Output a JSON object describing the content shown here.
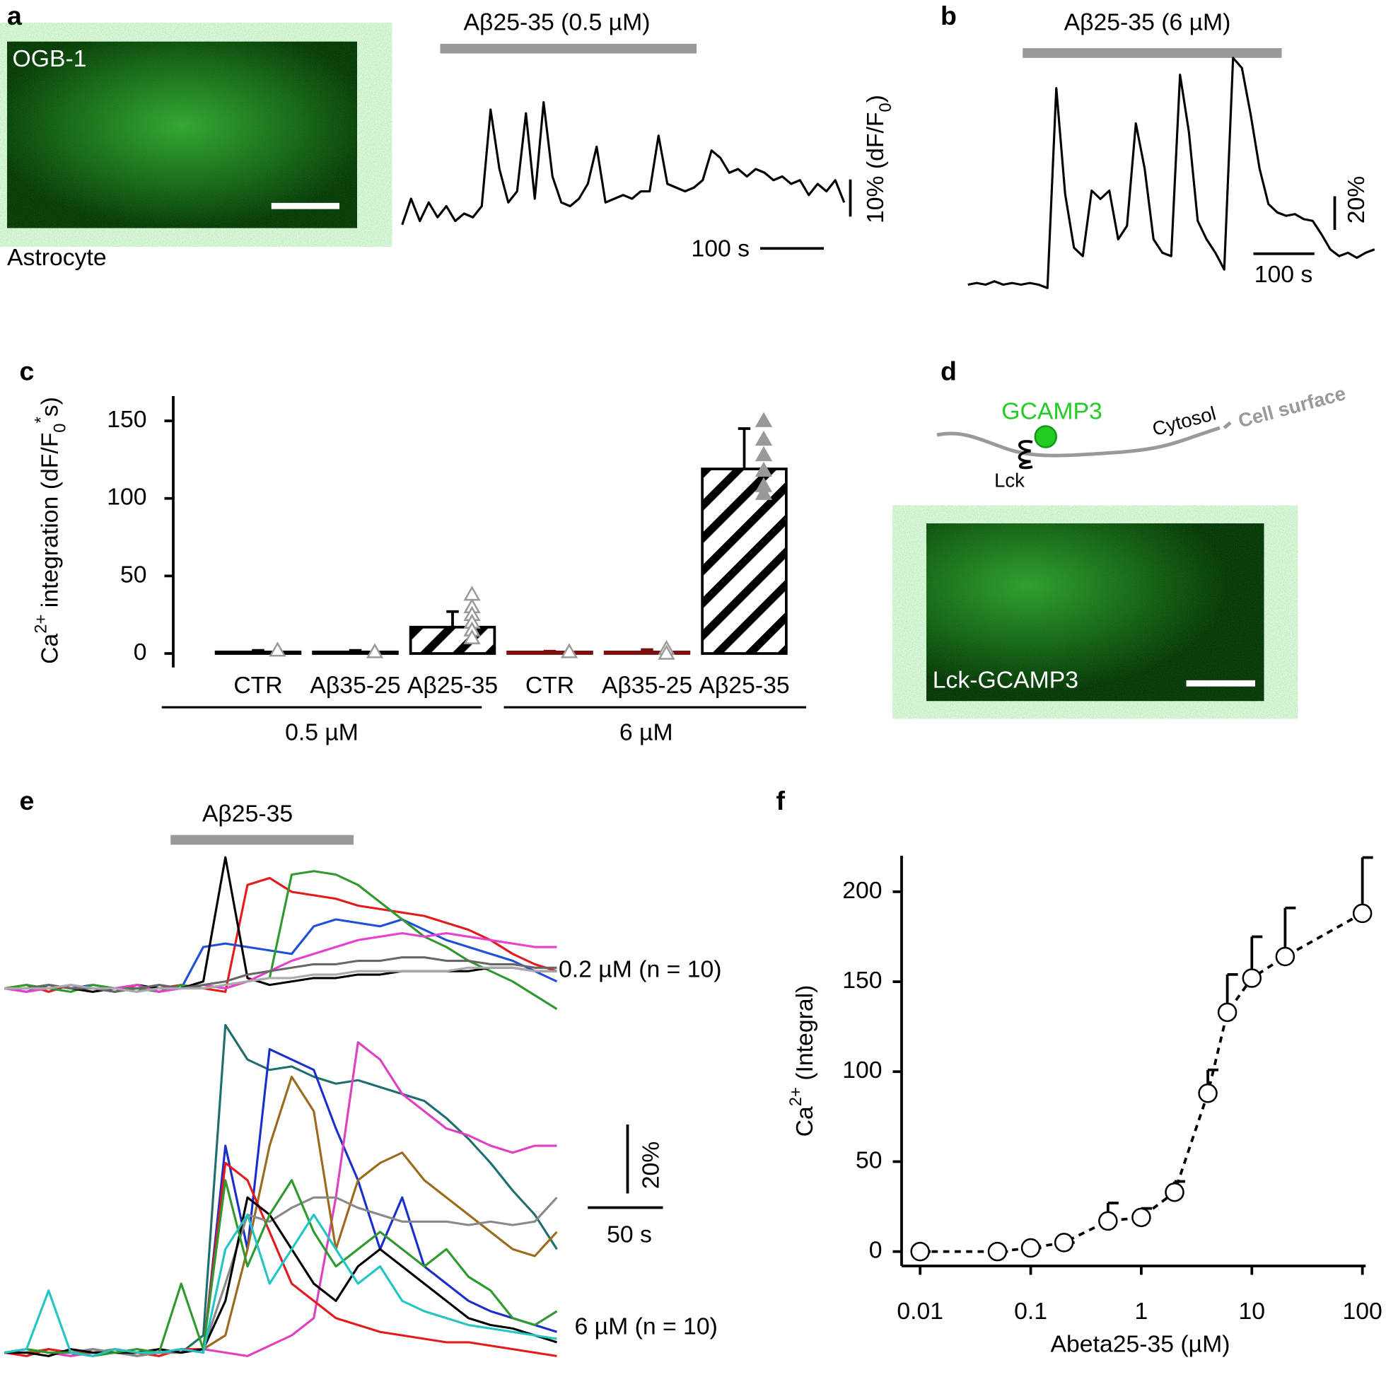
{
  "chart_data": [
    {
      "type": "line",
      "panel_label": "a",
      "image_label": "OGB-1",
      "caption": "Astrocyte",
      "bar_label": "Aβ25-35 (0.5 µM)",
      "scale_x_label": "100 s",
      "scale_y_label": [
        "10% (dF/F",
        "0",
        ")"
      ],
      "series": [
        {
          "color": "#000000",
          "values": [
            -1,
            6,
            0,
            5,
            1,
            4,
            0,
            2,
            1,
            4,
            30,
            14,
            5,
            8,
            29,
            6,
            32,
            12,
            5,
            4,
            6,
            10,
            20,
            5,
            6,
            7,
            6,
            8,
            8,
            23,
            10,
            9,
            8,
            9,
            11,
            19,
            17,
            13,
            14,
            12,
            14,
            13,
            11,
            12,
            10,
            11,
            7,
            10,
            8,
            11,
            5
          ]
        }
      ]
    },
    {
      "type": "line",
      "panel_label": "b",
      "bar_label": "Aβ25-35 (6 µM)",
      "scale_x_label": "100 s",
      "scale_y_label": "20%",
      "series": [
        {
          "color": "#000000",
          "values": [
            0,
            1,
            0,
            2,
            0,
            1,
            0,
            1,
            0,
            -2,
            117,
            54,
            22,
            17,
            56,
            51,
            56,
            27,
            35,
            96,
            69,
            27,
            19,
            17,
            125,
            91,
            38,
            27,
            19,
            9,
            135,
            129,
            101,
            69,
            48,
            43,
            41,
            42,
            39,
            38,
            30,
            21,
            17,
            19,
            16,
            19,
            21
          ]
        }
      ]
    },
    {
      "type": "bar",
      "panel_label": "c",
      "ylabel": [
        "Ca",
        "2+",
        " integration (dF/F",
        "0",
        "*",
        "s)"
      ],
      "categories": [
        "CTR",
        "Aβ35-25",
        "Aβ25-35",
        "CTR",
        "Aβ35-25",
        "Aβ25-35"
      ],
      "group_labels": [
        "0.5 µM",
        "6 µM"
      ],
      "values": [
        1,
        1,
        17,
        1,
        1,
        119
      ],
      "errors": [
        1,
        1,
        10,
        0.5,
        1.5,
        26
      ],
      "colors": [
        "#000000",
        "#000000",
        "#000000",
        "#7a1010",
        "#7a1010",
        "#000000"
      ],
      "hatched": [
        false,
        false,
        true,
        false,
        false,
        true
      ],
      "points": [
        [
          2
        ],
        [
          1
        ],
        [
          38,
          30,
          25,
          20,
          15,
          10
        ],
        [
          1
        ],
        [
          3,
          0
        ],
        [
          150,
          138,
          128,
          118,
          108,
          103
        ]
      ],
      "point_filled": [
        false,
        false,
        false,
        false,
        false,
        true
      ],
      "point_color": "#999999",
      "ylim": [
        -9,
        166
      ],
      "yticks": [
        0,
        50,
        100,
        150
      ]
    },
    {
      "type": "line",
      "panel_label": "e",
      "bar_label": "Aβ25-35",
      "scale_x_label": "50 s",
      "scale_y_label": "20%",
      "group_labels": [
        "0.2 µM (n = 10)",
        "6 µM (n = 10)"
      ],
      "series": [
        {
          "group": 0,
          "color": "#e41a1c",
          "values": [
            0,
            1,
            -1,
            1,
            0,
            -1,
            1,
            0,
            1,
            0,
            -1,
            30,
            32,
            28,
            27,
            26,
            24,
            23,
            22,
            21,
            19,
            17,
            14,
            10,
            7,
            5
          ]
        },
        {
          "group": 0,
          "color": "#1f4fd8",
          "values": [
            0,
            -1,
            1,
            0,
            1,
            0,
            -1,
            1,
            0,
            12,
            13,
            12,
            11,
            10,
            18,
            20,
            19,
            18,
            20,
            17,
            14,
            12,
            10,
            8,
            5,
            2
          ]
        },
        {
          "group": 0,
          "color": "#2e9a2e",
          "values": [
            0,
            1,
            0,
            -1,
            1,
            0,
            0,
            -1,
            1,
            0,
            1,
            2,
            3,
            33,
            34,
            33,
            30,
            25,
            20,
            15,
            12,
            8,
            5,
            2,
            -2,
            -6
          ]
        },
        {
          "group": 0,
          "color": "#000000",
          "values": [
            0,
            0,
            1,
            0,
            -1,
            0,
            1,
            0,
            0,
            2,
            38,
            3,
            1,
            2,
            3,
            3,
            4,
            4,
            5,
            5,
            5,
            5,
            6,
            6,
            5,
            5
          ]
        },
        {
          "group": 0,
          "color": "#e83fd0",
          "values": [
            0,
            -1,
            0,
            1,
            0,
            0,
            1,
            -1,
            0,
            1,
            0,
            2,
            5,
            8,
            10,
            12,
            14,
            15,
            16,
            15,
            16,
            15,
            14,
            13,
            12,
            12
          ]
        },
        {
          "group": 0,
          "color": "#666666",
          "values": [
            0,
            0,
            1,
            0,
            0,
            -1,
            0,
            1,
            0,
            1,
            2,
            4,
            5,
            6,
            7,
            7,
            8,
            8,
            9,
            9,
            8,
            8,
            7,
            7,
            6,
            6
          ]
        },
        {
          "group": 0,
          "color": "#aaaaaa",
          "values": [
            0,
            0,
            0,
            1,
            0,
            0,
            -1,
            0,
            0,
            0,
            1,
            2,
            3,
            3,
            4,
            4,
            5,
            5,
            5,
            5,
            5,
            6,
            6,
            6,
            5,
            5
          ]
        },
        {
          "group": 1,
          "color": "#1e6e6e",
          "values": [
            0,
            1,
            0,
            -1,
            1,
            0,
            0,
            1,
            0,
            5,
            95,
            85,
            82,
            83,
            80,
            78,
            79,
            77,
            75,
            73,
            68,
            62,
            55,
            47,
            40,
            30
          ]
        },
        {
          "group": 1,
          "color": "#1a2ecc",
          "values": [
            0,
            0,
            1,
            0,
            -1,
            1,
            0,
            0,
            1,
            0,
            60,
            30,
            88,
            85,
            82,
            65,
            50,
            30,
            45,
            25,
            20,
            15,
            12,
            10,
            8,
            6
          ]
        },
        {
          "group": 1,
          "color": "#e040c0",
          "values": [
            0,
            1,
            0,
            -1,
            0,
            0,
            1,
            0,
            0,
            1,
            0,
            -1,
            2,
            5,
            10,
            45,
            90,
            85,
            75,
            70,
            65,
            63,
            60,
            58,
            60,
            60
          ]
        },
        {
          "group": 1,
          "color": "#9a6b1a",
          "values": [
            0,
            0,
            1,
            0,
            0,
            1,
            -1,
            0,
            0,
            1,
            5,
            30,
            60,
            80,
            70,
            30,
            50,
            55,
            58,
            50,
            45,
            40,
            35,
            30,
            28,
            35
          ]
        },
        {
          "group": 1,
          "color": "#e41a1c",
          "values": [
            0,
            -1,
            1,
            0,
            1,
            0,
            0,
            -1,
            1,
            1,
            55,
            50,
            35,
            20,
            15,
            10,
            8,
            6,
            5,
            4,
            3,
            3,
            2,
            1,
            0,
            -1
          ]
        },
        {
          "group": 1,
          "color": "#888888",
          "values": [
            0,
            1,
            0,
            0,
            1,
            0,
            -1,
            0,
            0,
            1,
            20,
            40,
            38,
            42,
            45,
            45,
            42,
            40,
            38,
            38,
            38,
            37,
            38,
            37,
            38,
            45
          ]
        },
        {
          "group": 1,
          "color": "#000000",
          "values": [
            0,
            0,
            -1,
            1,
            0,
            0,
            0,
            1,
            0,
            1,
            15,
            45,
            40,
            30,
            20,
            15,
            25,
            30,
            25,
            20,
            15,
            10,
            8,
            7,
            5,
            3
          ]
        },
        {
          "group": 1,
          "color": "#2e9a2e",
          "values": [
            0,
            1,
            0,
            0,
            -1,
            0,
            1,
            0,
            20,
            1,
            50,
            25,
            40,
            50,
            35,
            25,
            30,
            35,
            30,
            25,
            30,
            22,
            18,
            10,
            8,
            12
          ]
        },
        {
          "group": 1,
          "color": "#22c4c4",
          "values": [
            0,
            1,
            18,
            0,
            -1,
            1,
            0,
            0,
            1,
            0,
            30,
            40,
            20,
            30,
            40,
            30,
            20,
            25,
            15,
            12,
            10,
            8,
            7,
            6,
            5,
            4
          ]
        }
      ]
    },
    {
      "type": "scatter",
      "panel_label": "f",
      "ylabel": [
        "Ca",
        "2+",
        " (Integral)"
      ],
      "xlabel": "Abeta25-35 (µM)",
      "x": [
        0.01,
        0.05,
        0.1,
        0.2,
        0.5,
        1,
        2,
        4,
        6,
        10,
        20,
        100
      ],
      "values": [
        0,
        0,
        2,
        5,
        17,
        19,
        33,
        88,
        133,
        152,
        164,
        188
      ],
      "errors": [
        0,
        0,
        0,
        0,
        10,
        5,
        6,
        13,
        21,
        23,
        27,
        31
      ],
      "xscale": "log",
      "line": "dashed",
      "xlim": [
        0.0068,
        107
      ],
      "xticks": [
        0.01,
        0.1,
        1,
        10,
        100
      ],
      "ylim": [
        -8,
        220
      ],
      "yticks": [
        0,
        50,
        100,
        150,
        200
      ]
    }
  ],
  "panel_d": {
    "label": "d",
    "protein": "GCAMP3",
    "cytosol": "Cytosol",
    "surface": "Cell surface",
    "anchor": "Lck",
    "image_label": "Lck-GCAMP3"
  }
}
